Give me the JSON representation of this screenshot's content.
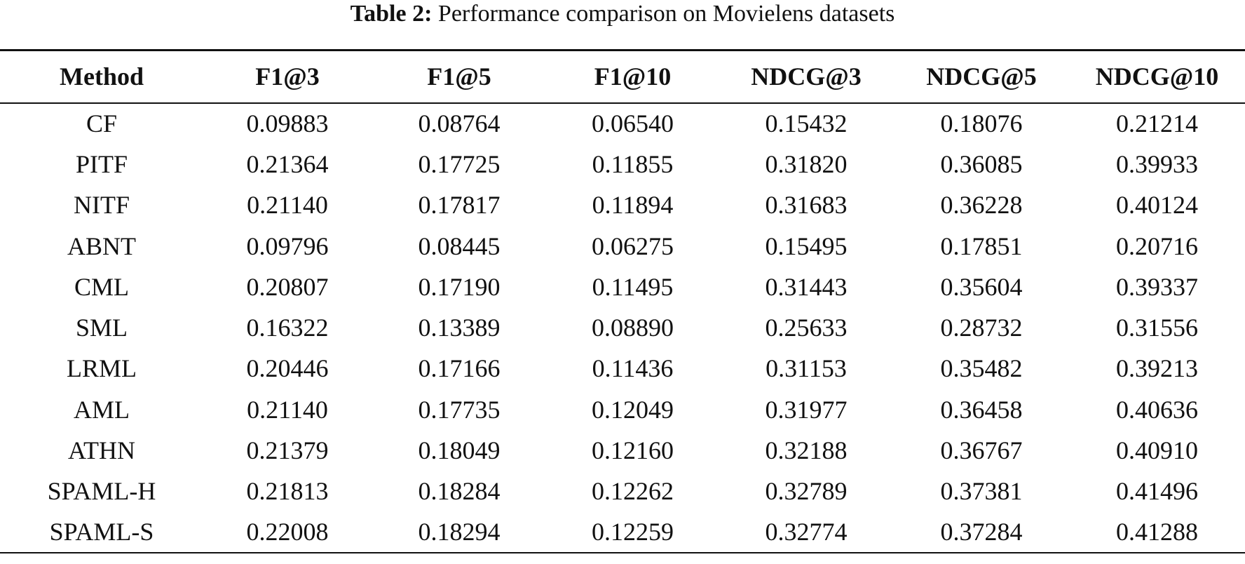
{
  "caption": {
    "label": "Table 2:",
    "text": " Performance comparison on Movielens datasets"
  },
  "table": {
    "headers": [
      "Method",
      "F1@3",
      "F1@5",
      "F1@10",
      "NDCG@3",
      "NDCG@5",
      "NDCG@10"
    ],
    "rows": [
      [
        "CF",
        "0.09883",
        "0.08764",
        "0.06540",
        "0.15432",
        "0.18076",
        "0.21214"
      ],
      [
        "PITF",
        "0.21364",
        "0.17725",
        "0.11855",
        "0.31820",
        "0.36085",
        "0.39933"
      ],
      [
        "NITF",
        "0.21140",
        "0.17817",
        "0.11894",
        "0.31683",
        "0.36228",
        "0.40124"
      ],
      [
        "ABNT",
        "0.09796",
        "0.08445",
        "0.06275",
        "0.15495",
        "0.17851",
        "0.20716"
      ],
      [
        "CML",
        "0.20807",
        "0.17190",
        "0.11495",
        "0.31443",
        "0.35604",
        "0.39337"
      ],
      [
        "SML",
        "0.16322",
        "0.13389",
        "0.08890",
        "0.25633",
        "0.28732",
        "0.31556"
      ],
      [
        "LRML",
        "0.20446",
        "0.17166",
        "0.11436",
        "0.31153",
        "0.35482",
        "0.39213"
      ],
      [
        "AML",
        "0.21140",
        "0.17735",
        "0.12049",
        "0.31977",
        "0.36458",
        "0.40636"
      ],
      [
        "ATHN",
        "0.21379",
        "0.18049",
        "0.12160",
        "0.32188",
        "0.36767",
        "0.40910"
      ],
      [
        "SPAML-H",
        "0.21813",
        "0.18284",
        "0.12262",
        "0.32789",
        "0.37381",
        "0.41496"
      ],
      [
        "SPAML-S",
        "0.22008",
        "0.18294",
        "0.12259",
        "0.32774",
        "0.37284",
        "0.41288"
      ]
    ]
  }
}
